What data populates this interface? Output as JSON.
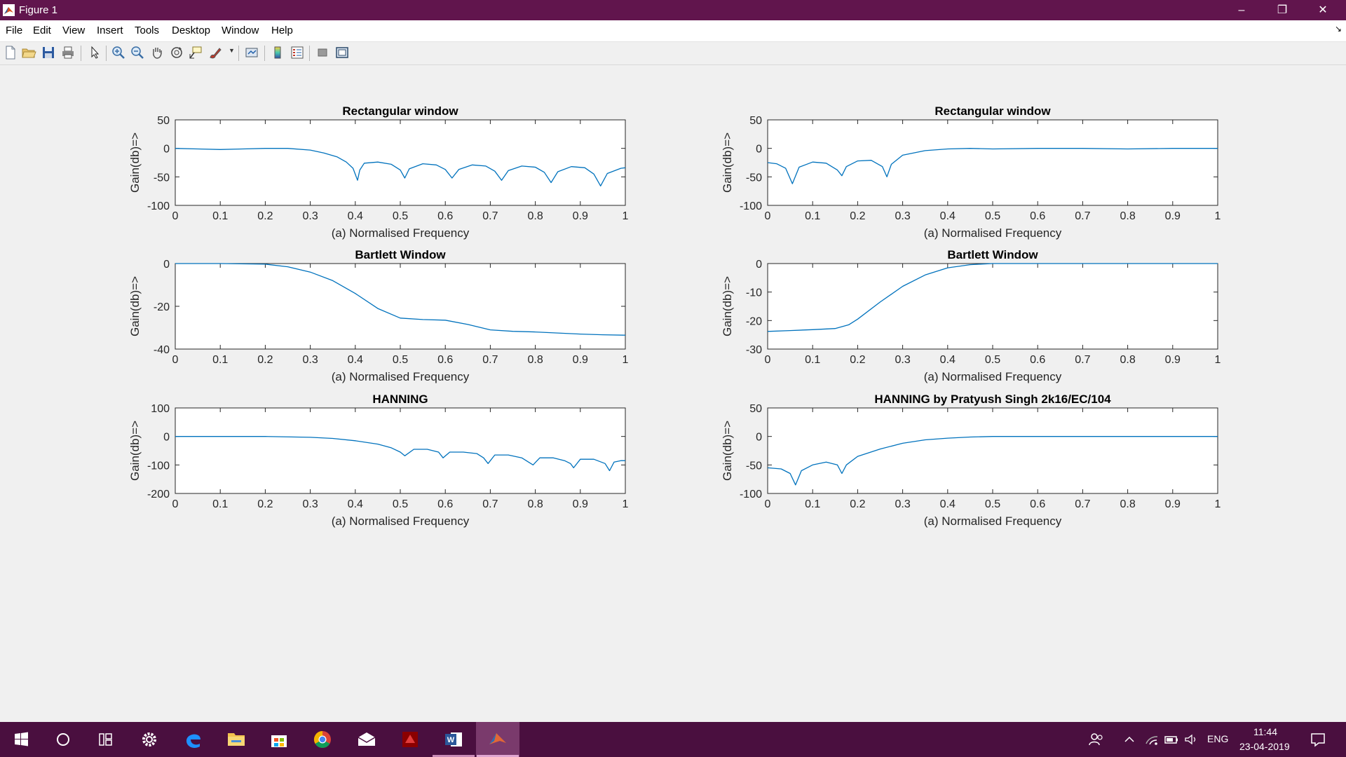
{
  "window": {
    "title": "Figure 1"
  },
  "window_controls": {
    "minimize": "–",
    "maximize": "❐",
    "close": "✕"
  },
  "menu": {
    "items": [
      "File",
      "Edit",
      "View",
      "Insert",
      "Tools",
      "Desktop",
      "Window",
      "Help"
    ],
    "dock_arrow": "↘"
  },
  "toolbar": {
    "icons": [
      "new-figure-icon",
      "open-file-icon",
      "save-icon",
      "print-icon",
      "edit-plot-arrow-icon",
      "zoom-in-icon",
      "zoom-out-icon",
      "pan-hand-icon",
      "rotate-3d-icon",
      "data-cursor-icon",
      "brush-icon",
      "link-plot-icon",
      "insert-colorbar-icon",
      "insert-legend-icon",
      "hide-plot-tools-icon",
      "show-plot-tools-icon"
    ]
  },
  "colors": {
    "titlebar": "#61154d",
    "taskbar": "#4a0f3f",
    "line": "#0072bd"
  },
  "chart_data": [
    {
      "type": "line",
      "title": "Rectangular window",
      "xlabel": "(a) Normalised Frequency",
      "ylabel": "Gain(db)=>",
      "xlim": [
        0,
        1
      ],
      "ylim": [
        -100,
        50
      ],
      "xticks": [
        "0",
        "0.1",
        "0.2",
        "0.3",
        "0.4",
        "0.5",
        "0.6",
        "0.7",
        "0.8",
        "0.9",
        "1"
      ],
      "yticks": [
        "50",
        "0",
        "-50",
        "-100"
      ],
      "ytick_values": [
        50,
        0,
        -50,
        -100
      ],
      "series": [
        {
          "x": [
            0,
            0.05,
            0.1,
            0.15,
            0.2,
            0.25,
            0.3,
            0.33,
            0.36,
            0.38,
            0.395,
            0.405,
            0.41,
            0.42,
            0.45,
            0.48,
            0.5,
            0.51,
            0.52,
            0.55,
            0.58,
            0.6,
            0.615,
            0.63,
            0.66,
            0.69,
            0.71,
            0.725,
            0.74,
            0.77,
            0.8,
            0.82,
            0.835,
            0.85,
            0.88,
            0.91,
            0.93,
            0.945,
            0.96,
            0.99,
            1.0
          ],
          "y": [
            0,
            -1,
            -2,
            -1,
            0,
            0,
            -3,
            -8,
            -15,
            -24,
            -35,
            -56,
            -38,
            -26,
            -24,
            -28,
            -38,
            -52,
            -36,
            -27,
            -29,
            -37,
            -52,
            -37,
            -29,
            -31,
            -40,
            -56,
            -39,
            -31,
            -33,
            -42,
            -60,
            -41,
            -32,
            -34,
            -45,
            -66,
            -44,
            -35,
            -34
          ]
        }
      ]
    },
    {
      "type": "line",
      "title": "Rectangular window",
      "xlabel": "(a) Normalised Frequency",
      "ylabel": "Gain(db)=>",
      "xlim": [
        0,
        1
      ],
      "ylim": [
        -100,
        50
      ],
      "xticks": [
        "0",
        "0.1",
        "0.2",
        "0.3",
        "0.4",
        "0.5",
        "0.6",
        "0.7",
        "0.8",
        "0.9",
        "1"
      ],
      "yticks": [
        "50",
        "0",
        "-50",
        "-100"
      ],
      "ytick_values": [
        50,
        0,
        -50,
        -100
      ],
      "series": [
        {
          "x": [
            0,
            0.02,
            0.04,
            0.055,
            0.07,
            0.1,
            0.13,
            0.155,
            0.165,
            0.175,
            0.2,
            0.23,
            0.255,
            0.265,
            0.275,
            0.3,
            0.35,
            0.4,
            0.45,
            0.5,
            0.6,
            0.7,
            0.8,
            0.9,
            1.0
          ],
          "y": [
            -25,
            -27,
            -35,
            -62,
            -33,
            -24,
            -26,
            -38,
            -48,
            -32,
            -22,
            -21,
            -32,
            -50,
            -28,
            -12,
            -4,
            -1,
            0,
            -1,
            0,
            0,
            -1,
            0,
            0
          ]
        }
      ]
    },
    {
      "type": "line",
      "title": "Bartlett Window",
      "xlabel": "(a) Normalised Frequency",
      "ylabel": "Gain(db)=>",
      "xlim": [
        0,
        1
      ],
      "ylim": [
        -40,
        0
      ],
      "xticks": [
        "0",
        "0.1",
        "0.2",
        "0.3",
        "0.4",
        "0.5",
        "0.6",
        "0.7",
        "0.8",
        "0.9",
        "1"
      ],
      "yticks": [
        "0",
        "-20",
        "-40"
      ],
      "ytick_values": [
        0,
        -20,
        -40
      ],
      "series": [
        {
          "x": [
            0,
            0.1,
            0.2,
            0.25,
            0.3,
            0.35,
            0.4,
            0.45,
            0.5,
            0.55,
            0.6,
            0.65,
            0.7,
            0.75,
            0.8,
            0.85,
            0.9,
            0.95,
            1.0
          ],
          "y": [
            0,
            0,
            -0.3,
            -1.5,
            -4,
            -8,
            -14,
            -21,
            -25.5,
            -26.2,
            -26.5,
            -28.5,
            -31,
            -31.7,
            -32,
            -32.5,
            -33,
            -33.3,
            -33.5
          ]
        }
      ]
    },
    {
      "type": "line",
      "title": "Bartlett Window",
      "xlabel": "(a) Normalised Frequency",
      "ylabel": "Gain(db)=>",
      "xlim": [
        0,
        1
      ],
      "ylim": [
        -30,
        0
      ],
      "xticks": [
        "0",
        "0.1",
        "0.2",
        "0.3",
        "0.4",
        "0.5",
        "0.6",
        "0.7",
        "0.8",
        "0.9",
        "1"
      ],
      "yticks": [
        "0",
        "-10",
        "-20",
        "-30"
      ],
      "ytick_values": [
        0,
        -10,
        -20,
        -30
      ],
      "series": [
        {
          "x": [
            0,
            0.05,
            0.1,
            0.15,
            0.18,
            0.2,
            0.25,
            0.3,
            0.35,
            0.4,
            0.45,
            0.5,
            0.6,
            0.7,
            0.8,
            0.9,
            1.0
          ],
          "y": [
            -23.8,
            -23.5,
            -23.2,
            -22.8,
            -21.5,
            -19.5,
            -13.5,
            -8,
            -4,
            -1.5,
            -0.4,
            0,
            0,
            0,
            0,
            0,
            0
          ]
        }
      ]
    },
    {
      "type": "line",
      "title": "HANNING",
      "xlabel": "(a) Normalised Frequency",
      "ylabel": "Gain(db)=>",
      "xlim": [
        0,
        1
      ],
      "ylim": [
        -200,
        100
      ],
      "xticks": [
        "0",
        "0.1",
        "0.2",
        "0.3",
        "0.4",
        "0.5",
        "0.6",
        "0.7",
        "0.8",
        "0.9",
        "1"
      ],
      "yticks": [
        "100",
        "0",
        "-100",
        "-200"
      ],
      "ytick_values": [
        100,
        0,
        -100,
        -200
      ],
      "series": [
        {
          "x": [
            0,
            0.1,
            0.2,
            0.3,
            0.35,
            0.4,
            0.45,
            0.48,
            0.5,
            0.51,
            0.53,
            0.56,
            0.585,
            0.595,
            0.61,
            0.64,
            0.67,
            0.685,
            0.695,
            0.71,
            0.74,
            0.77,
            0.785,
            0.795,
            0.81,
            0.84,
            0.865,
            0.878,
            0.885,
            0.9,
            0.93,
            0.955,
            0.965,
            0.975,
            0.99,
            1.0
          ],
          "y": [
            0,
            0,
            0,
            -3,
            -7,
            -15,
            -27,
            -40,
            -55,
            -68,
            -45,
            -45,
            -55,
            -75,
            -55,
            -55,
            -60,
            -75,
            -95,
            -65,
            -65,
            -75,
            -90,
            -100,
            -75,
            -75,
            -85,
            -95,
            -110,
            -80,
            -80,
            -95,
            -120,
            -90,
            -85,
            -85
          ]
        }
      ]
    },
    {
      "type": "line",
      "title": "HANNING by Pratyush Singh 2k16/EC/104",
      "xlabel": "(a) Normalised Frequency",
      "ylabel": "Gain(db)=>",
      "xlim": [
        0,
        1
      ],
      "ylim": [
        -100,
        50
      ],
      "xticks": [
        "0",
        "0.1",
        "0.2",
        "0.3",
        "0.4",
        "0.5",
        "0.6",
        "0.7",
        "0.8",
        "0.9",
        "1"
      ],
      "yticks": [
        "50",
        "0",
        "-50",
        "-100"
      ],
      "ytick_values": [
        50,
        0,
        -50,
        -100
      ],
      "series": [
        {
          "x": [
            0,
            0.03,
            0.05,
            0.062,
            0.075,
            0.1,
            0.13,
            0.155,
            0.165,
            0.175,
            0.2,
            0.25,
            0.3,
            0.35,
            0.4,
            0.45,
            0.5,
            0.6,
            0.7,
            0.8,
            0.9,
            1.0
          ],
          "y": [
            -55,
            -57,
            -65,
            -85,
            -60,
            -50,
            -45,
            -50,
            -65,
            -50,
            -35,
            -22,
            -12,
            -6,
            -3,
            -1,
            0,
            0,
            0,
            0,
            0,
            0
          ]
        }
      ]
    }
  ],
  "taskbar": {
    "apps": [
      "windows-start-icon",
      "cortana-search-icon",
      "task-view-icon",
      "settings-gear-icon",
      "edge-browser-icon",
      "file-explorer-icon",
      "store-icon",
      "chrome-icon",
      "mail-icon",
      "app-red-icon",
      "word-icon",
      "matlab-icon"
    ],
    "language": "ENG",
    "time": "11:44",
    "date": "23-04-2019"
  }
}
